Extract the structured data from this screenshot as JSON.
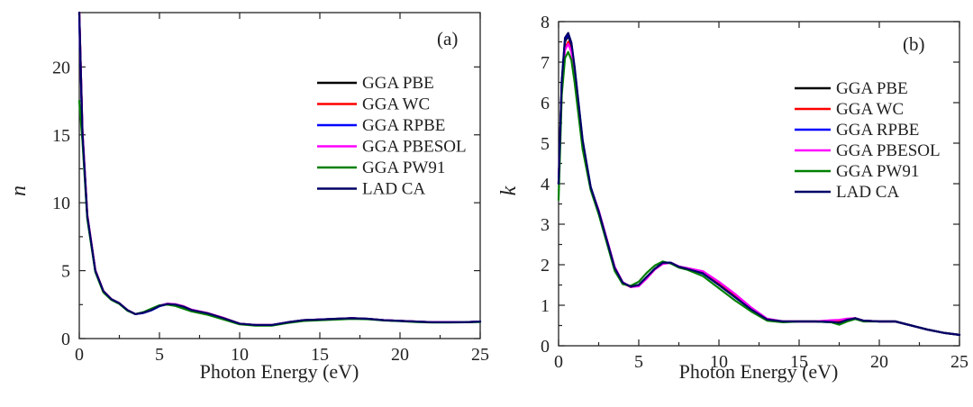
{
  "chart_data": [
    {
      "type": "line",
      "panel_label": "(a)",
      "xlabel": "Photon Energy (eV)",
      "ylabel": "n",
      "xlim": [
        0,
        25
      ],
      "ylim": [
        0,
        24
      ],
      "xticks": [
        0,
        5,
        10,
        15,
        20,
        25
      ],
      "yticks": [
        0,
        5,
        10,
        15,
        20
      ],
      "legend_position": "center-right",
      "series": [
        {
          "name": "GGA PBE",
          "color": "#000000",
          "x": [
            0,
            0.2,
            0.5,
            1,
            1.5,
            2,
            2.5,
            3,
            3.5,
            4,
            4.5,
            5,
            5.5,
            6,
            6.5,
            7,
            8,
            9,
            10,
            11,
            12,
            13,
            14,
            15,
            16,
            17,
            18,
            19,
            20,
            21,
            22,
            23,
            24,
            25
          ],
          "y": [
            24,
            15,
            9,
            5,
            3.5,
            2.9,
            2.6,
            2.1,
            1.8,
            1.9,
            2.1,
            2.4,
            2.55,
            2.5,
            2.35,
            2.1,
            1.85,
            1.5,
            1.1,
            1.0,
            1.0,
            1.2,
            1.35,
            1.4,
            1.45,
            1.5,
            1.45,
            1.35,
            1.3,
            1.25,
            1.2,
            1.2,
            1.2,
            1.25
          ]
        },
        {
          "name": "GGA WC",
          "color": "#ff0000",
          "x": [
            0,
            0.2,
            0.5,
            1,
            1.5,
            2,
            2.5,
            3,
            3.5,
            4,
            4.5,
            5,
            5.5,
            6,
            6.5,
            7,
            8,
            9,
            10,
            11,
            12,
            13,
            14,
            15,
            16,
            17,
            18,
            19,
            20,
            21,
            22,
            23,
            24,
            25
          ],
          "y": [
            24,
            15.2,
            9.1,
            5.05,
            3.5,
            2.9,
            2.6,
            2.1,
            1.8,
            1.9,
            2.12,
            2.42,
            2.56,
            2.52,
            2.38,
            2.12,
            1.88,
            1.52,
            1.1,
            1.0,
            1.0,
            1.2,
            1.35,
            1.4,
            1.45,
            1.5,
            1.45,
            1.35,
            1.3,
            1.25,
            1.2,
            1.2,
            1.2,
            1.25
          ]
        },
        {
          "name": "GGA RPBE",
          "color": "#0000ff",
          "x": [
            0,
            0.2,
            0.5,
            1,
            1.5,
            2,
            2.5,
            3,
            3.5,
            4,
            4.5,
            5,
            5.5,
            6,
            6.5,
            7,
            8,
            9,
            10,
            11,
            12,
            13,
            14,
            15,
            16,
            17,
            18,
            19,
            20,
            21,
            22,
            23,
            24,
            25
          ],
          "y": [
            23.5,
            14.8,
            8.9,
            4.95,
            3.45,
            2.88,
            2.58,
            2.08,
            1.8,
            1.88,
            2.08,
            2.38,
            2.53,
            2.48,
            2.33,
            2.08,
            1.82,
            1.48,
            1.08,
            1.0,
            1.0,
            1.2,
            1.35,
            1.4,
            1.45,
            1.5,
            1.45,
            1.35,
            1.3,
            1.25,
            1.2,
            1.2,
            1.2,
            1.25
          ]
        },
        {
          "name": "GGA PBESOL",
          "color": "#ff00ff",
          "x": [
            0,
            0.2,
            0.5,
            1,
            1.5,
            2,
            2.5,
            3,
            3.5,
            4,
            4.5,
            5,
            5.5,
            6,
            6.5,
            7,
            8,
            9,
            10,
            11,
            12,
            13,
            14,
            15,
            16,
            17,
            18,
            19,
            20,
            21,
            22,
            23,
            24,
            25
          ],
          "y": [
            24,
            15.3,
            9.1,
            5.05,
            3.5,
            2.9,
            2.6,
            2.1,
            1.8,
            1.9,
            2.13,
            2.43,
            2.57,
            2.53,
            2.38,
            2.13,
            1.88,
            1.52,
            1.1,
            1.0,
            1.0,
            1.2,
            1.35,
            1.4,
            1.45,
            1.5,
            1.45,
            1.35,
            1.3,
            1.25,
            1.2,
            1.2,
            1.2,
            1.25
          ]
        },
        {
          "name": "GGA PW91",
          "color": "#008000",
          "x": [
            0,
            0.2,
            0.5,
            1,
            1.5,
            2,
            2.5,
            3,
            3.5,
            4,
            4.5,
            5,
            5.5,
            6,
            6.5,
            7,
            8,
            9,
            10,
            11,
            12,
            13,
            14,
            15,
            16,
            17,
            18,
            19,
            20,
            21,
            22,
            23,
            24,
            25
          ],
          "y": [
            17.5,
            14.5,
            8.8,
            4.9,
            3.4,
            2.85,
            2.55,
            2.05,
            1.8,
            1.95,
            2.2,
            2.45,
            2.5,
            2.4,
            2.2,
            2.0,
            1.75,
            1.4,
            1.05,
            0.95,
            0.95,
            1.15,
            1.3,
            1.35,
            1.4,
            1.45,
            1.42,
            1.33,
            1.28,
            1.22,
            1.18,
            1.18,
            1.2,
            1.22
          ]
        },
        {
          "name": "LAD CA",
          "color": "#000066",
          "x": [
            0,
            0.2,
            0.5,
            1,
            1.5,
            2,
            2.5,
            3,
            3.5,
            4,
            4.5,
            5,
            5.5,
            6,
            6.5,
            7,
            8,
            9,
            10,
            11,
            12,
            13,
            14,
            15,
            16,
            17,
            18,
            19,
            20,
            21,
            22,
            23,
            24,
            25
          ],
          "y": [
            24,
            15.1,
            9.05,
            5.0,
            3.5,
            2.9,
            2.6,
            2.1,
            1.8,
            1.9,
            2.1,
            2.4,
            2.55,
            2.5,
            2.35,
            2.1,
            1.86,
            1.5,
            1.1,
            1.0,
            1.0,
            1.2,
            1.36,
            1.4,
            1.46,
            1.5,
            1.46,
            1.35,
            1.3,
            1.25,
            1.2,
            1.2,
            1.2,
            1.25
          ]
        }
      ]
    },
    {
      "type": "line",
      "panel_label": "(b)",
      "xlabel": "Photon Energy (eV)",
      "ylabel": "k",
      "xlim": [
        0,
        25
      ],
      "ylim": [
        0,
        8
      ],
      "xticks": [
        0,
        5,
        10,
        15,
        20,
        25
      ],
      "yticks": [
        0,
        1,
        2,
        3,
        4,
        5,
        6,
        7,
        8
      ],
      "legend_position": "center-right",
      "series": [
        {
          "name": "GGA PBE",
          "color": "#000000",
          "x": [
            0,
            0.2,
            0.4,
            0.6,
            0.8,
            1,
            1.5,
            2,
            2.5,
            3,
            3.5,
            4,
            4.5,
            5,
            5.5,
            6,
            6.5,
            7,
            7.5,
            8,
            9,
            10,
            11,
            12,
            13,
            14,
            15,
            16,
            17,
            17.5,
            18,
            18.5,
            19,
            20,
            21,
            22,
            23,
            24,
            25
          ],
          "y": [
            4.0,
            6.5,
            7.5,
            7.65,
            7.4,
            6.8,
            5.0,
            3.9,
            3.3,
            2.6,
            1.9,
            1.55,
            1.45,
            1.5,
            1.7,
            1.9,
            2.05,
            2.05,
            1.95,
            1.9,
            1.8,
            1.5,
            1.2,
            0.9,
            0.65,
            0.6,
            0.6,
            0.6,
            0.6,
            0.58,
            0.65,
            0.68,
            0.62,
            0.6,
            0.6,
            0.5,
            0.4,
            0.32,
            0.27
          ]
        },
        {
          "name": "GGA WC",
          "color": "#ff0000",
          "x": [
            0,
            0.2,
            0.4,
            0.6,
            0.8,
            1,
            1.5,
            2,
            2.5,
            3,
            3.5,
            4,
            4.5,
            5,
            5.5,
            6,
            6.5,
            7,
            7.5,
            8,
            9,
            10,
            11,
            12,
            13,
            14,
            15,
            16,
            17,
            17.5,
            18,
            18.5,
            19,
            20,
            21,
            22,
            23,
            24,
            25
          ],
          "y": [
            4.0,
            6.4,
            7.35,
            7.5,
            7.3,
            6.7,
            4.95,
            3.9,
            3.3,
            2.6,
            1.9,
            1.55,
            1.45,
            1.48,
            1.68,
            1.9,
            2.03,
            2.05,
            1.95,
            1.9,
            1.82,
            1.55,
            1.25,
            0.92,
            0.66,
            0.6,
            0.6,
            0.6,
            0.62,
            0.62,
            0.66,
            0.68,
            0.62,
            0.6,
            0.6,
            0.5,
            0.4,
            0.32,
            0.27
          ]
        },
        {
          "name": "GGA RPBE",
          "color": "#0000ff",
          "x": [
            0,
            0.2,
            0.4,
            0.6,
            0.8,
            1,
            1.5,
            2,
            2.5,
            3,
            3.5,
            4,
            4.5,
            5,
            5.5,
            6,
            6.5,
            7,
            7.5,
            8,
            9,
            10,
            11,
            12,
            13,
            14,
            15,
            16,
            17,
            17.5,
            18,
            18.5,
            19,
            20,
            21,
            22,
            23,
            24,
            25
          ],
          "y": [
            4.0,
            6.5,
            7.55,
            7.7,
            7.45,
            6.85,
            5.05,
            3.92,
            3.32,
            2.62,
            1.92,
            1.56,
            1.46,
            1.5,
            1.7,
            1.9,
            2.05,
            2.05,
            1.95,
            1.9,
            1.78,
            1.5,
            1.2,
            0.9,
            0.65,
            0.6,
            0.6,
            0.6,
            0.58,
            0.56,
            0.64,
            0.68,
            0.62,
            0.6,
            0.6,
            0.5,
            0.4,
            0.32,
            0.27
          ]
        },
        {
          "name": "GGA PBESOL",
          "color": "#ff00ff",
          "x": [
            0,
            0.2,
            0.4,
            0.6,
            0.8,
            1,
            1.5,
            2,
            2.5,
            3,
            3.5,
            4,
            4.5,
            5,
            5.5,
            6,
            6.5,
            7,
            7.5,
            8,
            9,
            10,
            11,
            12,
            13,
            14,
            15,
            16,
            17,
            17.5,
            18,
            18.5,
            19,
            20,
            21,
            22,
            23,
            24,
            25
          ],
          "y": [
            4.0,
            6.35,
            7.3,
            7.45,
            7.25,
            6.65,
            4.95,
            3.9,
            3.35,
            2.65,
            1.95,
            1.57,
            1.45,
            1.47,
            1.66,
            1.88,
            2.02,
            2.05,
            1.96,
            1.92,
            1.84,
            1.58,
            1.28,
            0.95,
            0.67,
            0.6,
            0.6,
            0.6,
            0.63,
            0.64,
            0.67,
            0.68,
            0.62,
            0.6,
            0.6,
            0.5,
            0.4,
            0.32,
            0.27
          ]
        },
        {
          "name": "GGA PW91",
          "color": "#008000",
          "x": [
            0,
            0.2,
            0.4,
            0.6,
            0.8,
            1,
            1.5,
            2,
            2.5,
            3,
            3.5,
            4,
            4.5,
            5,
            5.5,
            6,
            6.5,
            7,
            7.5,
            8,
            9,
            10,
            11,
            12,
            13,
            14,
            15,
            16,
            17,
            17.5,
            18,
            18.5,
            19,
            20,
            21,
            22,
            23,
            24,
            25
          ],
          "y": [
            3.6,
            6.2,
            7.1,
            7.25,
            7.05,
            6.5,
            4.85,
            3.85,
            3.25,
            2.55,
            1.85,
            1.52,
            1.48,
            1.58,
            1.8,
            1.98,
            2.08,
            2.03,
            1.93,
            1.88,
            1.72,
            1.42,
            1.12,
            0.85,
            0.62,
            0.58,
            0.6,
            0.6,
            0.58,
            0.52,
            0.6,
            0.66,
            0.6,
            0.6,
            0.6,
            0.5,
            0.4,
            0.32,
            0.27
          ]
        },
        {
          "name": "LAD CA",
          "color": "#000066",
          "x": [
            0,
            0.2,
            0.4,
            0.6,
            0.8,
            1,
            1.5,
            2,
            2.5,
            3,
            3.5,
            4,
            4.5,
            5,
            5.5,
            6,
            6.5,
            7,
            7.5,
            8,
            9,
            10,
            11,
            12,
            13,
            14,
            15,
            16,
            17,
            17.5,
            18,
            18.5,
            19,
            20,
            21,
            22,
            23,
            24,
            25
          ],
          "y": [
            4.0,
            6.55,
            7.6,
            7.72,
            7.48,
            6.88,
            5.08,
            3.92,
            3.32,
            2.62,
            1.92,
            1.56,
            1.46,
            1.5,
            1.7,
            1.9,
            2.05,
            2.05,
            1.95,
            1.9,
            1.79,
            1.5,
            1.2,
            0.9,
            0.65,
            0.6,
            0.6,
            0.6,
            0.59,
            0.57,
            0.64,
            0.68,
            0.62,
            0.6,
            0.6,
            0.5,
            0.4,
            0.32,
            0.27
          ]
        }
      ]
    }
  ]
}
